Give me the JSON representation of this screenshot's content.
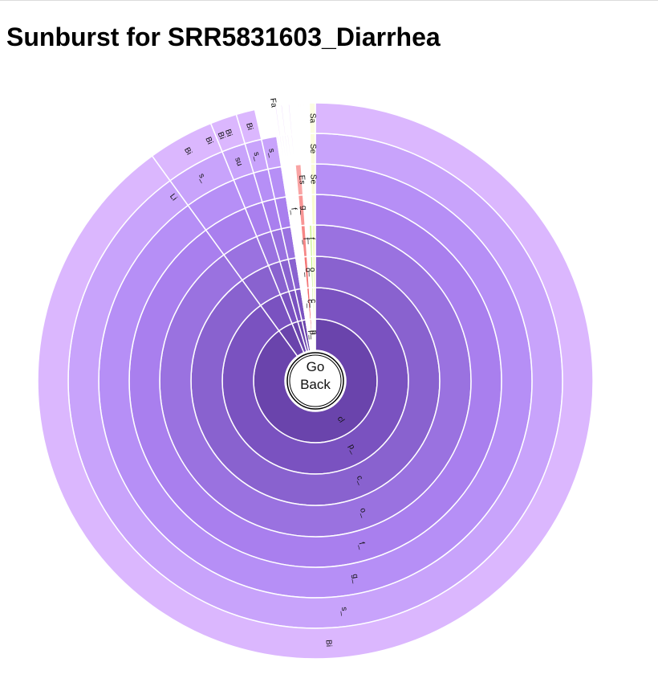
{
  "page": {
    "title": "Sunburst for SRR5831603_Diarrhea"
  },
  "center": {
    "line1": "Go",
    "line2": "Back"
  },
  "chart_data": {
    "type": "sunburst",
    "title": "Sunburst for SRR5831603_Diarrhea",
    "rings": 8,
    "colors": {
      "purple": [
        "#6a44ac",
        "#7a52c0",
        "#8962cf",
        "#9a72e0",
        "#a97fee",
        "#b68ff6",
        "#c8a3fb",
        "#dbb7fe"
      ],
      "red": [
        "#f05a5a",
        "#f26767",
        "#f47676",
        "#f68686",
        "#f89595",
        "#f9a4a4",
        "#fbb4b4",
        "#fcc4c4"
      ],
      "lime": [
        "#a7e35a",
        "#b5ea6c",
        "#c3ef82",
        "#d1f398",
        "#ddf6aa",
        "#e6f8b9",
        "#eefac8",
        "#f3fbd5"
      ],
      "yellow": [
        "#f4f7a9",
        "#f6f8b3",
        "#f7f9bd",
        "#f8fac6",
        "#f9fbce",
        "#fafbd5",
        "#fbfcdc",
        "#fcfde2"
      ],
      "lavender": [
        "#a98be6",
        "#b494ec",
        "#bf9ef1",
        "#c9a8f4",
        "#d2b2f7",
        "#dabbf9",
        "#e2c5fb",
        "#e8cefc"
      ]
    },
    "segments": [
      {
        "group": "purple",
        "start": 0,
        "end": 0.9,
        "depth": 8,
        "labels": [
          "cl",
          "p_",
          "c_",
          "o_",
          "f_",
          "g_",
          "s_",
          "Bi"
        ]
      },
      {
        "group": "purple",
        "start": 0.9,
        "end": 0.9385,
        "depth": 8,
        "labels": [
          "",
          "",
          "",
          "",
          "",
          "",
          "s_",
          "Bi"
        ]
      },
      {
        "group": "purple",
        "start": 0.9385,
        "end": 0.954,
        "depth": 8,
        "labels": [
          "",
          "",
          "",
          "",
          "",
          "",
          "su",
          "Bi"
        ]
      },
      {
        "group": "purple",
        "start": 0.954,
        "end": 0.965,
        "depth": 8,
        "labels": [
          "",
          "",
          "",
          "",
          "",
          "",
          "s_",
          "Bi"
        ]
      },
      {
        "group": "purple",
        "start": 0.965,
        "end": 0.975,
        "depth": 7,
        "labels": [
          "",
          "",
          "",
          "",
          "",
          "",
          "s_"
        ]
      },
      {
        "group": "purple",
        "start": 0.975,
        "end": 0.985,
        "depth": 5,
        "labels": [
          "",
          "",
          "",
          "",
          "f_"
        ]
      },
      {
        "group": "red",
        "start": 0.985,
        "end": 0.9935,
        "depth": 6,
        "labels": [
          "p_",
          "c_",
          "o_",
          "f_",
          "g_",
          "Es"
        ]
      },
      {
        "group": "lime",
        "start": 0.9935,
        "end": 0.998,
        "depth": 4,
        "labels": [
          "p_",
          "c_",
          "o_",
          "f_"
        ]
      },
      {
        "group": "yellow",
        "start": 0.9965,
        "end": 1.0,
        "depth": 8,
        "labels": [
          "",
          "",
          "",
          "",
          "",
          "Se",
          "Se",
          "Sa"
        ]
      }
    ],
    "overflow_labels": [
      "Li",
      "Bi",
      "Bi",
      "Fa"
    ]
  }
}
